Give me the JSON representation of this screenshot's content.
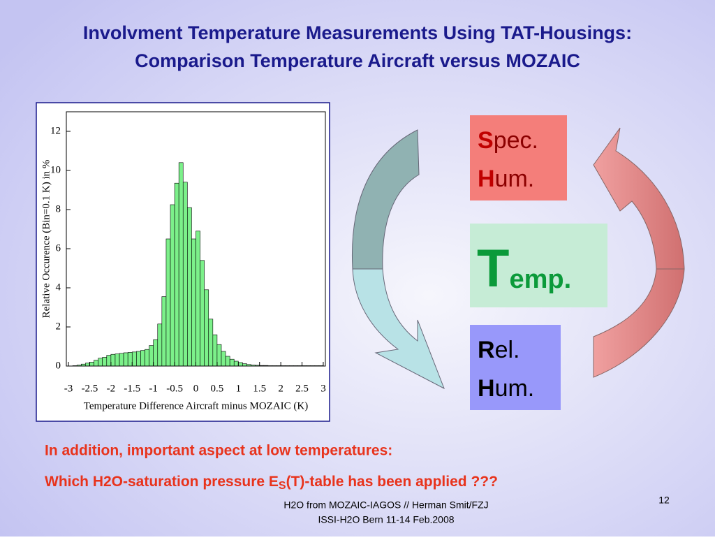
{
  "header": {
    "title_lines": [
      "Involvment Temperature Measurements Using TAT-Housings:",
      "Comparison Temperature Aircraft versus MOZAIC"
    ]
  },
  "chart_data": {
    "type": "histogram",
    "y_label": "Relative Occurence (Bin=0.1 K) in %",
    "x_label": "Temperature Difference Aircraft minus MOZAIC (K)",
    "bins": [
      -3.0,
      -2.9,
      -2.8,
      -2.7,
      -2.6,
      -2.5,
      -2.4,
      -2.3,
      -2.2,
      -2.1,
      -2.0,
      -1.9,
      -1.8,
      -1.7,
      -1.6,
      -1.5,
      -1.4,
      -1.3,
      -1.2,
      -1.1,
      -1.0,
      -0.9,
      -0.8,
      -0.7,
      -0.6,
      -0.5,
      -0.4,
      -0.3,
      -0.2,
      -0.1,
      0.0,
      0.1,
      0.2,
      0.3,
      0.4,
      0.5,
      0.6,
      0.7,
      0.8,
      0.9,
      1.0,
      1.1,
      1.2,
      1.3,
      1.4,
      1.5,
      1.6,
      1.7,
      1.8,
      1.9,
      2.0,
      2.1,
      2.2,
      2.3,
      2.4,
      2.5,
      2.6,
      2.7,
      2.8,
      2.9,
      3.0
    ],
    "values": [
      0.0,
      0.02,
      0.05,
      0.1,
      0.15,
      0.2,
      0.3,
      0.4,
      0.45,
      0.55,
      0.6,
      0.62,
      0.65,
      0.68,
      0.7,
      0.72,
      0.75,
      0.8,
      0.85,
      1.05,
      1.35,
      2.15,
      3.55,
      6.5,
      8.25,
      9.35,
      10.4,
      9.4,
      8.1,
      6.5,
      6.9,
      5.4,
      3.9,
      2.4,
      1.6,
      1.1,
      0.75,
      0.5,
      0.35,
      0.25,
      0.18,
      0.12,
      0.08,
      0.05,
      0.04,
      0.03,
      0.03,
      0.02,
      0.02,
      0.02,
      0.02,
      0.02,
      0.02,
      0.02,
      0.02,
      0.02,
      0.02,
      0.02,
      0.02,
      0.02
    ],
    "color": "#7cf08a",
    "xlim": [
      -3.05,
      3.05
    ],
    "ylim": [
      0,
      13
    ],
    "xticks": [
      -3,
      -2.5,
      -2,
      -1.5,
      -1,
      -0.5,
      0,
      0.5,
      1,
      1.5,
      2,
      2.5,
      3
    ],
    "yticks": [
      0,
      2,
      4,
      6,
      8,
      10,
      12
    ]
  },
  "cycle": {
    "spec_hum": [
      "S",
      "pec.",
      "H",
      "um."
    ],
    "temp": [
      "T",
      "emp."
    ],
    "rel_hum": [
      "R",
      "el.",
      "H",
      "um."
    ]
  },
  "notes": {
    "line1": "In addition, important aspect at low temperatures:",
    "line2_a": "Which H2O-saturation pressure E",
    "line2_sub": "S",
    "line2_b": "(T)-table has been applied ???"
  },
  "footer": {
    "lines": [
      "H2O from MOZAIC-IAGOS // Herman Smit/FZJ",
      "ISSI-H2O Bern 11-14 Feb.2008"
    ],
    "page": "12"
  }
}
